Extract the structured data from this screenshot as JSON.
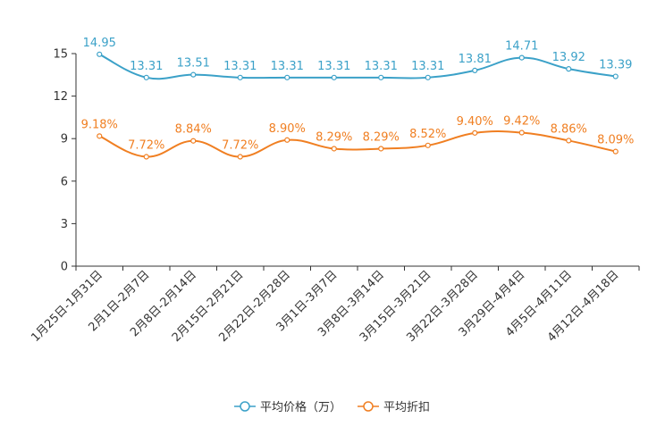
{
  "chart_data": {
    "type": "line",
    "title": "",
    "xlabel": "",
    "ylabel": "",
    "ylim": [
      0,
      15
    ],
    "yticks": [
      0,
      3,
      6,
      9,
      12,
      15
    ],
    "categories": [
      "1月25日-1月31日",
      "2月1日-2月7日",
      "2月8日-2月14日",
      "2月15日-2月21日",
      "2月22日-2月28日",
      "3月1日-3月7日",
      "3月8日-3月14日",
      "3月15日-3月21日",
      "3月22日-3月28日",
      "3月29日-4月4日",
      "4月5日-4月11日",
      "4月12日-4月18日"
    ],
    "series": [
      {
        "name": "平均价格（万）",
        "color": "#3ba1c8",
        "values": [
          14.95,
          13.31,
          13.51,
          13.31,
          13.31,
          13.31,
          13.31,
          13.31,
          13.81,
          14.71,
          13.92,
          13.39
        ],
        "labels": [
          "14.95",
          "13.31",
          "13.51",
          "13.31",
          "13.31",
          "13.31",
          "13.31",
          "13.31",
          "13.81",
          "14.71",
          "13.92",
          "13.39"
        ]
      },
      {
        "name": "平均折扣",
        "color": "#f07f22",
        "values": [
          9.18,
          7.72,
          8.84,
          7.72,
          8.9,
          8.29,
          8.29,
          8.52,
          9.4,
          9.42,
          8.86,
          8.09
        ],
        "labels": [
          "9.18%",
          "7.72%",
          "8.84%",
          "7.72%",
          "8.90%",
          "8.29%",
          "8.29%",
          "8.52%",
          "9.40%",
          "9.42%",
          "8.86%",
          "8.09%"
        ]
      }
    ],
    "legend_position": "bottom-center",
    "grid": false
  }
}
